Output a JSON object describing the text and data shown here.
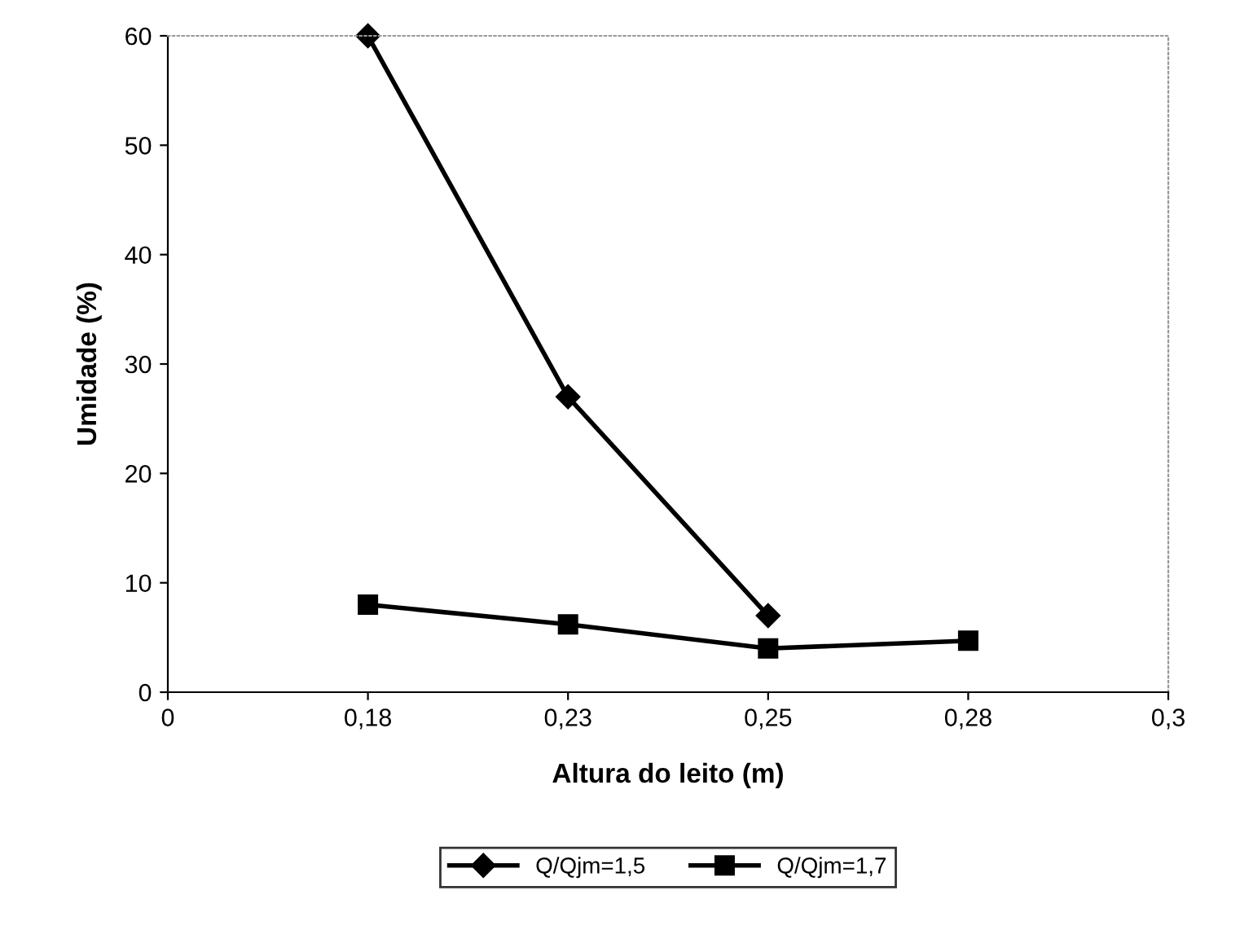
{
  "chart_data": {
    "type": "line",
    "xlabel": "Altura do leito (m)",
    "ylabel": "Umidade (%)",
    "categories": [
      "0",
      "0,18",
      "0,23",
      "0,25",
      "0,28",
      "0,3"
    ],
    "series": [
      {
        "name": "Q/Qjm=1,5",
        "color": "#000000",
        "marker": "diamond",
        "values": [
          null,
          60,
          27,
          7,
          null,
          null
        ]
      },
      {
        "name": "Q/Qjm=1,7",
        "color": "#000000",
        "marker": "square",
        "values": [
          null,
          8,
          6.2,
          4,
          4.7,
          null
        ]
      }
    ],
    "ylim": [
      0,
      60
    ],
    "yticks": [
      0,
      10,
      20,
      30,
      40,
      50,
      60
    ],
    "grid": false,
    "legend": "bottom",
    "line_style": "solid"
  }
}
